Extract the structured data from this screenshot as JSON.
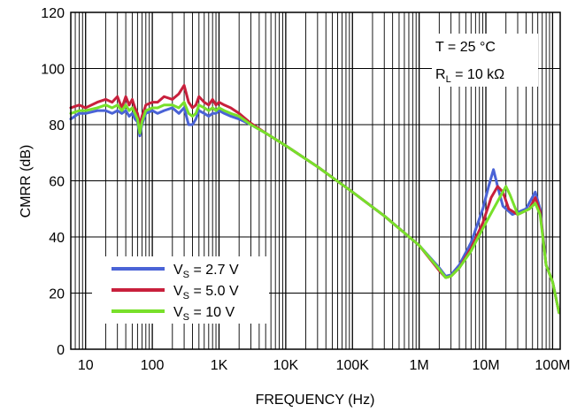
{
  "chart_data": {
    "type": "line",
    "xlabel": "FREQUENCY (Hz)",
    "ylabel": "CMRR (dB)",
    "x_scale": "log",
    "xlim": [
      6,
      130000000
    ],
    "ylim": [
      0,
      120
    ],
    "grid": true,
    "legend_position": "bottom-left",
    "x_ticks": [
      {
        "value": 10,
        "label": "10"
      },
      {
        "value": 100,
        "label": "100"
      },
      {
        "value": 1000,
        "label": "1K"
      },
      {
        "value": 10000,
        "label": "10K"
      },
      {
        "value": 100000,
        "label": "100K"
      },
      {
        "value": 1000000,
        "label": "1M"
      },
      {
        "value": 10000000,
        "label": "10M"
      },
      {
        "value": 100000000,
        "label": "100M"
      }
    ],
    "y_ticks": [
      {
        "value": 0,
        "label": "0"
      },
      {
        "value": 20,
        "label": "20"
      },
      {
        "value": 40,
        "label": "40"
      },
      {
        "value": 60,
        "label": "60"
      },
      {
        "value": 80,
        "label": "80"
      },
      {
        "value": 100,
        "label": "100"
      },
      {
        "value": 120,
        "label": "120"
      }
    ],
    "annotations": {
      "temperature": "T = 25 °C",
      "load_prefix": "R",
      "load_sub": "L",
      "load_suffix": " = 10 kΩ"
    },
    "series": [
      {
        "name": "V_S = 2.7 V",
        "legend_prefix": "V",
        "legend_sub": "S",
        "legend_suffix": " = 2.7 V",
        "color": "#4a63d6",
        "points": [
          [
            6,
            82
          ],
          [
            8,
            84
          ],
          [
            10,
            84
          ],
          [
            15,
            85
          ],
          [
            20,
            85
          ],
          [
            25,
            84
          ],
          [
            30,
            85
          ],
          [
            35,
            84
          ],
          [
            40,
            85
          ],
          [
            45,
            83
          ],
          [
            50,
            84
          ],
          [
            55,
            82
          ],
          [
            60,
            81
          ],
          [
            65,
            76
          ],
          [
            70,
            80
          ],
          [
            80,
            84
          ],
          [
            100,
            85
          ],
          [
            120,
            84
          ],
          [
            150,
            85
          ],
          [
            200,
            86
          ],
          [
            250,
            84
          ],
          [
            300,
            86
          ],
          [
            350,
            80
          ],
          [
            400,
            80
          ],
          [
            450,
            82
          ],
          [
            500,
            85
          ],
          [
            600,
            84
          ],
          [
            700,
            83
          ],
          [
            800,
            84
          ],
          [
            900,
            84
          ],
          [
            1000,
            85
          ],
          [
            1200,
            84
          ],
          [
            1500,
            83
          ],
          [
            2000,
            82
          ],
          [
            3000,
            80
          ],
          [
            5000,
            77
          ],
          [
            10000,
            72.5
          ],
          [
            30000,
            65
          ],
          [
            100000,
            56
          ],
          [
            300000,
            47.5
          ],
          [
            1000000,
            37
          ],
          [
            2000000,
            29
          ],
          [
            2500000,
            26
          ],
          [
            3000000,
            26.5
          ],
          [
            4000000,
            30
          ],
          [
            6000000,
            38
          ],
          [
            9000000,
            50
          ],
          [
            11000000,
            58
          ],
          [
            13000000,
            64
          ],
          [
            15000000,
            58
          ],
          [
            18000000,
            51
          ],
          [
            25000000,
            48
          ],
          [
            40000000,
            50
          ],
          [
            55000000,
            56
          ],
          [
            65000000,
            50
          ],
          [
            80000000,
            30
          ],
          [
            100000000,
            24
          ],
          [
            125000000,
            13
          ]
        ]
      },
      {
        "name": "V_S = 5.0 V",
        "legend_prefix": "V",
        "legend_sub": "S",
        "legend_suffix": " = 5.0 V",
        "color": "#c8203c",
        "points": [
          [
            6,
            86
          ],
          [
            8,
            87
          ],
          [
            10,
            86
          ],
          [
            15,
            88
          ],
          [
            20,
            89
          ],
          [
            25,
            88
          ],
          [
            30,
            90
          ],
          [
            35,
            86
          ],
          [
            40,
            90
          ],
          [
            45,
            87
          ],
          [
            50,
            89
          ],
          [
            55,
            86
          ],
          [
            60,
            84
          ],
          [
            65,
            80
          ],
          [
            70,
            83
          ],
          [
            80,
            87
          ],
          [
            100,
            88
          ],
          [
            120,
            88
          ],
          [
            150,
            90
          ],
          [
            200,
            89
          ],
          [
            250,
            91
          ],
          [
            300,
            94
          ],
          [
            350,
            88
          ],
          [
            400,
            86
          ],
          [
            450,
            87
          ],
          [
            500,
            90
          ],
          [
            600,
            88
          ],
          [
            700,
            87
          ],
          [
            800,
            89
          ],
          [
            900,
            87
          ],
          [
            1000,
            88
          ],
          [
            1200,
            87
          ],
          [
            1500,
            86
          ],
          [
            2000,
            84
          ],
          [
            3000,
            80.5
          ],
          [
            5000,
            77
          ],
          [
            10000,
            72.5
          ],
          [
            30000,
            65
          ],
          [
            100000,
            56
          ],
          [
            300000,
            47.5
          ],
          [
            1000000,
            37
          ],
          [
            2000000,
            28
          ],
          [
            2500000,
            25.5
          ],
          [
            3000000,
            26
          ],
          [
            4000000,
            29
          ],
          [
            6000000,
            36
          ],
          [
            9000000,
            45
          ],
          [
            12000000,
            54
          ],
          [
            15000000,
            58
          ],
          [
            18000000,
            56
          ],
          [
            22000000,
            50
          ],
          [
            30000000,
            48
          ],
          [
            45000000,
            50
          ],
          [
            55000000,
            54
          ],
          [
            65000000,
            49
          ],
          [
            80000000,
            30
          ],
          [
            100000000,
            24
          ],
          [
            125000000,
            13
          ]
        ]
      },
      {
        "name": "V_S = 10 V",
        "legend_prefix": "V",
        "legend_sub": "S",
        "legend_suffix": " = 10 V",
        "color": "#78e02a",
        "points": [
          [
            6,
            84
          ],
          [
            8,
            85
          ],
          [
            10,
            85
          ],
          [
            15,
            86
          ],
          [
            20,
            87
          ],
          [
            25,
            86
          ],
          [
            30,
            87
          ],
          [
            35,
            85
          ],
          [
            40,
            87
          ],
          [
            45,
            85
          ],
          [
            50,
            86
          ],
          [
            55,
            84
          ],
          [
            60,
            82
          ],
          [
            65,
            77
          ],
          [
            70,
            81
          ],
          [
            80,
            85
          ],
          [
            100,
            86
          ],
          [
            120,
            86
          ],
          [
            150,
            87
          ],
          [
            200,
            87
          ],
          [
            250,
            86
          ],
          [
            300,
            88
          ],
          [
            350,
            84
          ],
          [
            400,
            83
          ],
          [
            450,
            84
          ],
          [
            500,
            87
          ],
          [
            600,
            86
          ],
          [
            700,
            85
          ],
          [
            800,
            86
          ],
          [
            900,
            85
          ],
          [
            1000,
            86
          ],
          [
            1200,
            85
          ],
          [
            1500,
            84
          ],
          [
            2000,
            83
          ],
          [
            3000,
            80
          ],
          [
            5000,
            77
          ],
          [
            10000,
            72.5
          ],
          [
            30000,
            65
          ],
          [
            100000,
            56
          ],
          [
            300000,
            47.5
          ],
          [
            1000000,
            37
          ],
          [
            2000000,
            28.5
          ],
          [
            2500000,
            25.5
          ],
          [
            3000000,
            26
          ],
          [
            4000000,
            29
          ],
          [
            6000000,
            35
          ],
          [
            9000000,
            43
          ],
          [
            13000000,
            50
          ],
          [
            17000000,
            55
          ],
          [
            20000000,
            58
          ],
          [
            23000000,
            55
          ],
          [
            30000000,
            48
          ],
          [
            45000000,
            50
          ],
          [
            55000000,
            52
          ],
          [
            65000000,
            48
          ],
          [
            80000000,
            30
          ],
          [
            100000000,
            24
          ],
          [
            125000000,
            13
          ]
        ]
      }
    ]
  }
}
